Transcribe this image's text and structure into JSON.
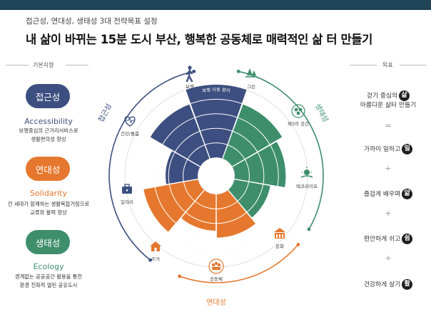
{
  "header": {
    "subtitle": "접근성, 연대성, 생태성 3대 전략목표 설정",
    "title": "내 삶이 바뀌는 15분 도시 부산, 행복한 공동체로 매력적인 삶 터 만들기"
  },
  "left": {
    "heading": "기본지향",
    "pillars": [
      {
        "kr": "접근성",
        "en": "Accessibility",
        "desc": [
          "보행중심의 근거리서비스로",
          "생활편의성 향상"
        ],
        "color": "#3d4f80"
      },
      {
        "kr": "연대성",
        "en": "Solidarity",
        "desc": [
          "전 세대가 함께하는 생활복합거점으로",
          "교류와 활력 향상"
        ],
        "color": "#e5782e"
      },
      {
        "kr": "생태성",
        "en": "Ecology",
        "desc": [
          "경계없는 공공공간 활용을 통한",
          "환경 친화적 열린 공유도시"
        ],
        "color": "#3e8e6c"
      }
    ]
  },
  "right": {
    "heading": "목표",
    "goals": [
      {
        "text1": "걷기 중심의",
        "char": "삶",
        "text2": "아름다운 삶터 만들기"
      },
      {
        "text1": "가까이 일하고",
        "char": "일"
      },
      {
        "text1": "즐겁게 배우며",
        "char": "앎"
      },
      {
        "text1": "편안하게 쉬고",
        "char": "쉼"
      },
      {
        "text1": "건강하게 살기",
        "char": "활"
      }
    ],
    "separators": [
      "=",
      "+",
      "+",
      "+"
    ]
  },
  "diagram": {
    "ring_labels": {
      "top_left": "접근성",
      "top_right": "생태성",
      "bottom": "연대성"
    },
    "icons": [
      {
        "label": "보행",
        "icon": "walking-person-icon"
      },
      {
        "label": "그린",
        "icon": "tree-icon"
      },
      {
        "label": "제3의 공간",
        "icon": "people-group-icon"
      },
      {
        "label": "에코라이프",
        "icon": "sun-icon"
      },
      {
        "label": "문화",
        "icon": "building-icon"
      },
      {
        "label": "공동체",
        "icon": "community-icon"
      },
      {
        "label": "주거",
        "icon": "house-icon"
      },
      {
        "label": "일자리",
        "icon": "briefcase-icon"
      },
      {
        "label": "건강/돌봄",
        "icon": "heart-pulse-icon"
      }
    ],
    "sector_labels": [
      "보행 이동 편리",
      "생활형 오픈스페이스",
      "걷기좋은 생활환경",
      "환경 친화 생활",
      "매력 공공 문화",
      "공동체 교류",
      "다양한 주거",
      "지역 일자리 창출",
      "생활 돌봄/케어"
    ],
    "colors": {
      "accessibility": "#3d4f80",
      "ecology": "#3e8e6c",
      "solidarity": "#e5782e"
    },
    "chart_data": {
      "type": "polar-area",
      "scale_levels": 5,
      "sectors": [
        {
          "name": "보행 이동 편리",
          "group": "접근성",
          "value": 5
        },
        {
          "name": "생활형 오픈스페이스",
          "group": "생태성",
          "value": 4
        },
        {
          "name": "걷기좋은 생활환경",
          "group": "생태성",
          "value": 3.5
        },
        {
          "name": "환경 친화 생활",
          "group": "생태성",
          "value": 2.5
        },
        {
          "name": "매력 공공 문화",
          "group": "연대성",
          "value": 3
        },
        {
          "name": "공동체 교류",
          "group": "연대성",
          "value": 2.5
        },
        {
          "name": "다양한 주거",
          "group": "연대성",
          "value": 3.8
        },
        {
          "name": "지역 일자리 창출",
          "group": "접근성",
          "value": 2.2
        },
        {
          "name": "생활 돌봄/케어",
          "group": "접근성",
          "value": 4
        }
      ]
    }
  }
}
